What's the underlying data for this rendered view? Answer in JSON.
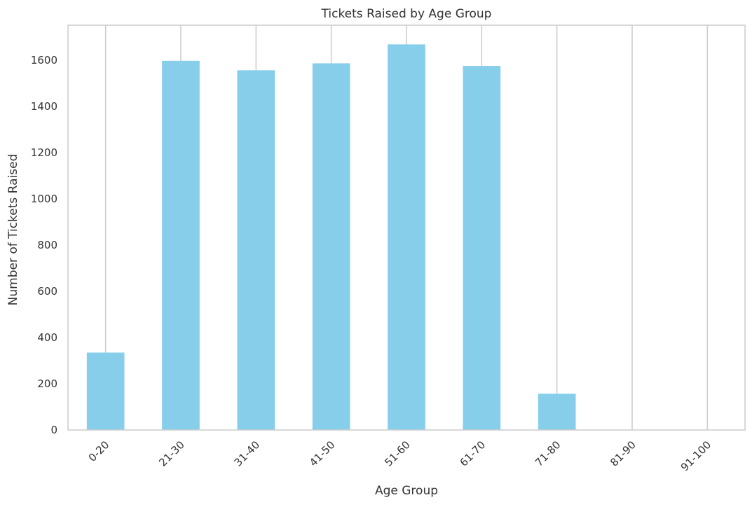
{
  "chart_data": {
    "type": "bar",
    "title": "Tickets Raised by Age Group",
    "xlabel": "Age Group",
    "ylabel": "Number of Tickets Raised",
    "categories": [
      "0-20",
      "21-30",
      "31-40",
      "41-50",
      "51-60",
      "61-70",
      "71-80",
      "81-90",
      "91-100"
    ],
    "values": [
      335,
      1598,
      1557,
      1587,
      1669,
      1576,
      157,
      0,
      0
    ],
    "ylim": [
      0,
      1752
    ],
    "yticks": [
      0,
      200,
      400,
      600,
      800,
      1000,
      1200,
      1400,
      1600
    ],
    "grid": "x-only",
    "legend": "none",
    "colors": {
      "bar": "#87ceeb",
      "grid": "#cccccc",
      "axes": "#cccccc",
      "text": "#333333"
    }
  }
}
